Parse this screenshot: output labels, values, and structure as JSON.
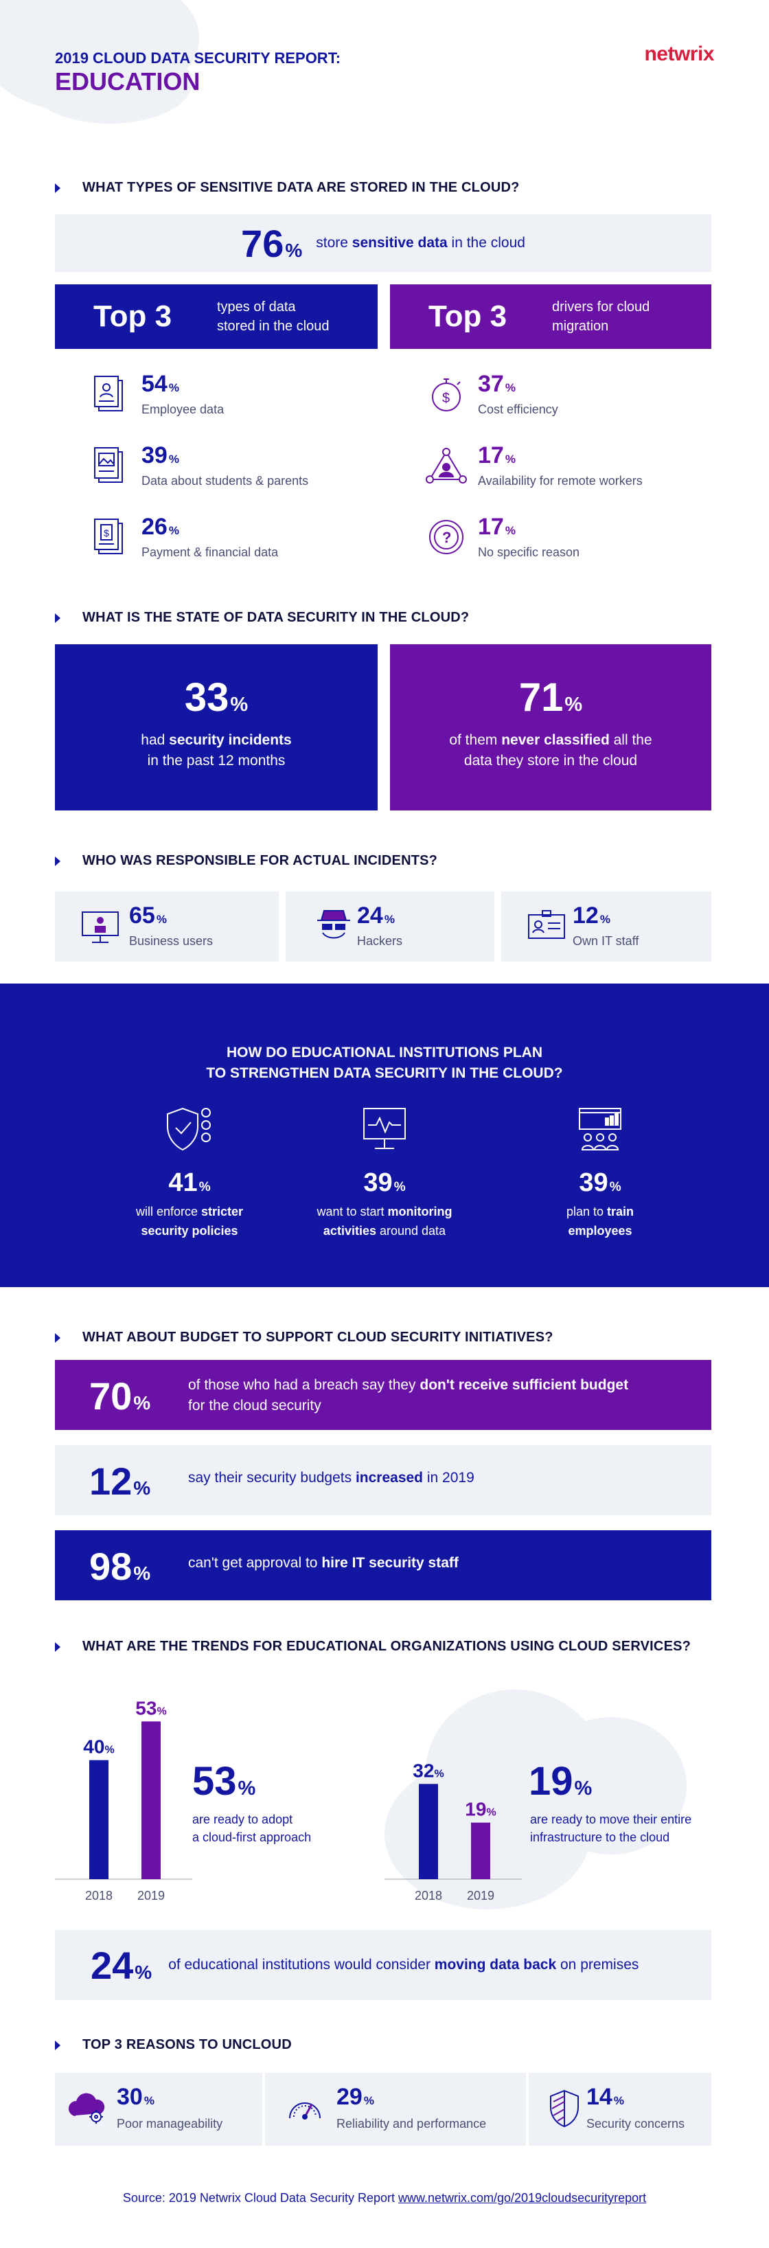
{
  "header": {
    "subtitle": "2019 CLOUD DATA SECURITY REPORT:",
    "title": "EDUCATION",
    "logo": "netwrix"
  },
  "colors": {
    "blue": "#1216a0",
    "purple": "#6a11a6",
    "light": "#eef2f6"
  },
  "s1": {
    "title": "WHAT TYPES OF SENSITIVE DATA ARE STORED IN THE CLOUD?",
    "stat_value": "76",
    "stat_pre": "store ",
    "stat_bold": "sensitive data",
    "stat_post": " in the cloud",
    "left_head": "Top 3",
    "left_desc1": "types of data",
    "left_desc2": "stored in the cloud",
    "right_head": "Top 3",
    "right_desc1": "drivers for cloud",
    "right_desc2": "migration",
    "left_items": [
      {
        "value": "54",
        "label": "Employee data",
        "icon": "employee-file-icon"
      },
      {
        "value": "39",
        "label": "Data about students & parents",
        "icon": "photo-file-icon"
      },
      {
        "value": "26",
        "label": "Payment & financial data",
        "icon": "dollar-file-icon"
      }
    ],
    "right_items": [
      {
        "value": "37",
        "label": "Cost efficiency",
        "icon": "stopwatch-dollar-icon"
      },
      {
        "value": "17",
        "label": "Availability for remote workers",
        "icon": "network-people-icon"
      },
      {
        "value": "17",
        "label": "No specific reason",
        "icon": "question-icon"
      }
    ]
  },
  "s2": {
    "title": "WHAT IS THE STATE OF DATA SECURITY IN THE CLOUD?",
    "left_value": "33",
    "left_pre": "had ",
    "left_bold": "security incidents",
    "left_line2": "in the past 12 months",
    "right_value": "71",
    "right_pre": "of them ",
    "right_bold": "never classified",
    "right_post": " all the",
    "right_line2": "data they store in the cloud"
  },
  "s3": {
    "title": "WHO WAS RESPONSIBLE FOR ACTUAL INCIDENTS?",
    "items": [
      {
        "value": "65",
        "label": "Business users",
        "icon": "monitor-user-icon"
      },
      {
        "value": "24",
        "label": "Hackers",
        "icon": "hacker-icon"
      },
      {
        "value": "12",
        "label": "Own IT staff",
        "icon": "id-badge-icon"
      }
    ]
  },
  "s4": {
    "title1": "HOW DO EDUCATIONAL INSTITUTIONS PLAN",
    "title2": "TO STRENGTHEN DATA SECURITY IN THE CLOUD?",
    "items": [
      {
        "value": "41",
        "pre": "will enforce ",
        "bold1": "stricter",
        "line2_bold": "security policies",
        "line2": "",
        "icon": "shield-lock-icon"
      },
      {
        "value": "39",
        "pre": "want to start ",
        "bold1": "monitoring",
        "line2_bold": "activities",
        "line2": " around data",
        "icon": "monitor-activity-icon"
      },
      {
        "value": "39",
        "pre": "plan to ",
        "bold1": "train",
        "line2_bold": "employees",
        "line2": "",
        "icon": "training-board-icon"
      }
    ]
  },
  "s5": {
    "title": "WHAT ABOUT BUDGET TO SUPPORT CLOUD SECURITY INITIATIVES?",
    "row1_value": "70",
    "row1_pre": "of those who had a breach say they ",
    "row1_bold": "don't receive sufficient budget",
    "row1_line2": "for the cloud security",
    "row2_value": "12",
    "row2_pre": "say their security budgets ",
    "row2_bold": "increased",
    "row2_post": " in 2019",
    "row3_value": "98",
    "row3_pre": "can't get approval to ",
    "row3_bold": "hire IT security staff"
  },
  "s6": {
    "title": "WHAT ARE THE TRENDS FOR EDUCATIONAL ORGANIZATIONS USING CLOUD SERVICES?",
    "chart1": {
      "categories": [
        "2018",
        "2019"
      ],
      "values": [
        40,
        53
      ],
      "labels": [
        "40",
        "53"
      ]
    },
    "chart1_value": "53",
    "chart1_text1": "are ready to adopt",
    "chart1_text2": "a cloud-first approach",
    "chart2": {
      "categories": [
        "2018",
        "2019"
      ],
      "values": [
        32,
        19
      ],
      "labels": [
        "32",
        "19"
      ]
    },
    "chart2_value": "19",
    "chart2_text1": "are ready to move their entire",
    "chart2_text2": "infrastructure to the cloud",
    "back_value": "24",
    "back_pre": "of educational institutions would consider ",
    "back_bold": "moving data back",
    "back_post": " on premises"
  },
  "chart_data": [
    {
      "type": "bar",
      "categories": [
        "2018",
        "2019"
      ],
      "values": [
        40,
        53
      ],
      "title": "",
      "xlabel": "",
      "ylabel": ""
    },
    {
      "type": "bar",
      "categories": [
        "2018",
        "2019"
      ],
      "values": [
        32,
        19
      ],
      "title": "",
      "xlabel": "",
      "ylabel": ""
    }
  ],
  "s7": {
    "title": "TOP 3 REASONS TO UNCLOUD",
    "items": [
      {
        "value": "30",
        "label": "Poor manageability",
        "icon": "cloud-gear-icon"
      },
      {
        "value": "29",
        "label": "Reliability and performance",
        "icon": "speedometer-icon"
      },
      {
        "value": "14",
        "label": "Security concerns",
        "icon": "shield-icon"
      }
    ]
  },
  "footer": {
    "source": "Source: 2019 Netwrix Cloud Data Security Report ",
    "link": "www.netwrix.com/go/2019cloudsecurityreport"
  },
  "pct_sign": "%"
}
